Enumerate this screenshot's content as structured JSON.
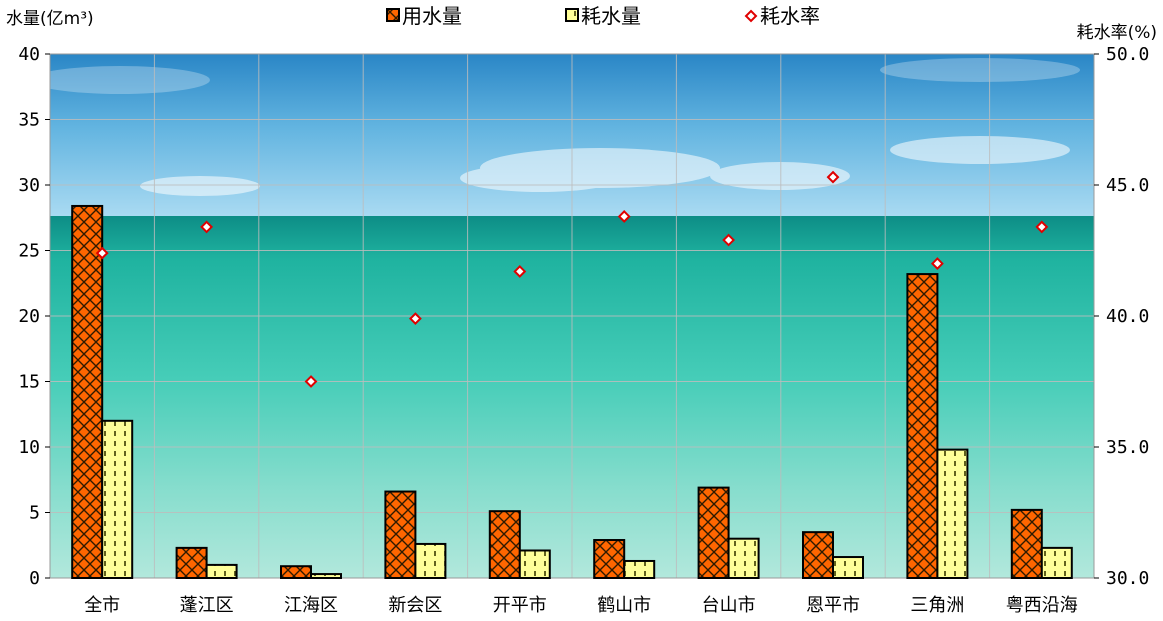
{
  "chart_data": {
    "type": "bar",
    "categories": [
      "全市",
      "蓬江区",
      "江海区",
      "新会区",
      "开平市",
      "鹤山市",
      "台山市",
      "恩平市",
      "三角洲",
      "粤西沿海"
    ],
    "series": [
      {
        "name": "用水量",
        "kind": "bar",
        "axis": "left",
        "values": [
          28.4,
          2.3,
          0.9,
          6.6,
          5.1,
          2.9,
          6.9,
          3.5,
          23.2,
          5.2
        ],
        "color": "#ff6600"
      },
      {
        "name": "耗水量",
        "kind": "bar",
        "axis": "left",
        "values": [
          12.0,
          1.0,
          0.3,
          2.6,
          2.1,
          1.3,
          3.0,
          1.6,
          9.8,
          2.3
        ],
        "color": "#ffff99"
      },
      {
        "name": "耗水率",
        "kind": "scatter",
        "axis": "right",
        "values": [
          42.4,
          43.4,
          37.5,
          39.9,
          41.7,
          43.8,
          42.9,
          45.3,
          42.0,
          43.4
        ],
        "color": "#e00000"
      }
    ],
    "ylabel": "水量(亿m³)",
    "y2label": "耗水率(%)",
    "ylim": [
      0,
      40
    ],
    "y2lim": [
      30,
      50
    ],
    "yticks": [
      "0",
      "5",
      "10",
      "15",
      "20",
      "25",
      "30",
      "35",
      "40"
    ],
    "y2ticks": [
      "30.0",
      "35.0",
      "40.0",
      "45.0",
      "50.0"
    ],
    "grid": true,
    "legend_position": "top-center"
  }
}
